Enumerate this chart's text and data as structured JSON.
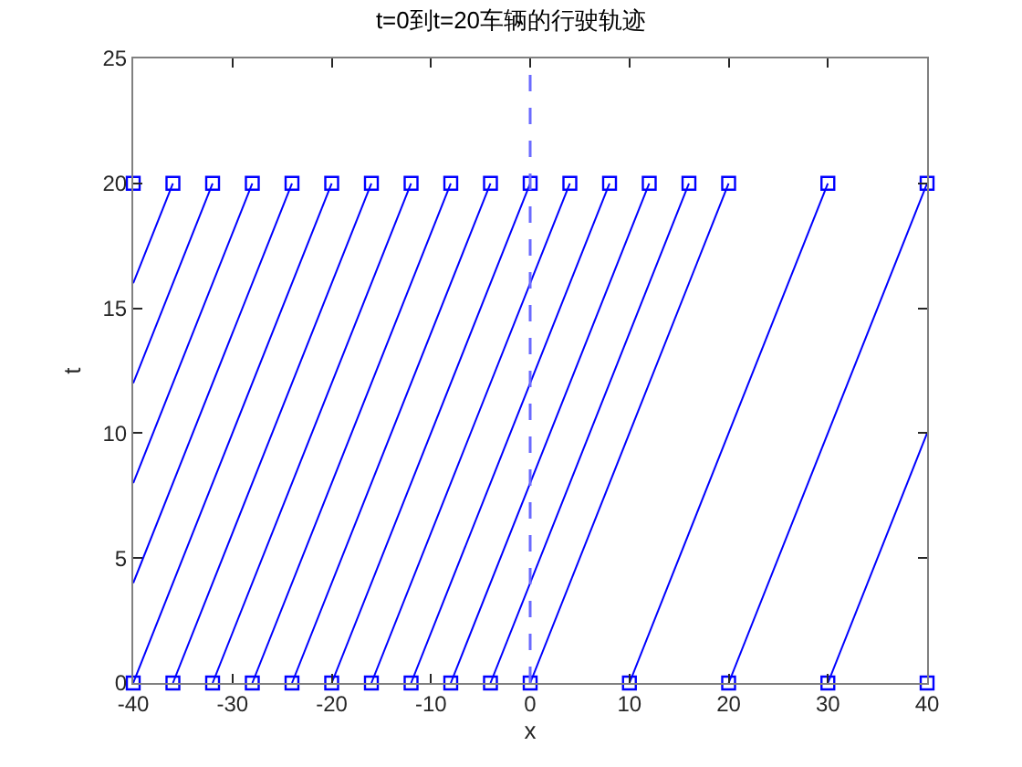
{
  "chart_data": {
    "type": "line",
    "title": "t=0到t=20车辆的行驶轨迹",
    "xlabel": "x",
    "ylabel": "t",
    "xlim": [
      -40,
      40
    ],
    "ylim": [
      0,
      25
    ],
    "xticks": [
      -40,
      -30,
      -20,
      -10,
      0,
      10,
      20,
      30,
      40
    ],
    "yticks": [
      0,
      5,
      10,
      15,
      20,
      25
    ],
    "grid": false,
    "series": [
      {
        "color": "#0000ff",
        "marker": "none",
        "line_style": "solid",
        "x": [
          -40,
          -20,
          null,
          -36,
          -16,
          null,
          -32,
          -12,
          null,
          -28,
          -8,
          null,
          -24,
          -4,
          null,
          -20,
          0,
          null,
          -16,
          4,
          null,
          -12,
          8,
          null,
          -8,
          12,
          null,
          -4,
          16,
          null,
          0,
          20,
          null,
          10,
          30,
          null,
          20,
          40,
          null,
          30,
          40,
          null,
          -40,
          -24,
          null,
          -40,
          -28,
          null,
          -40,
          -32,
          null,
          -40,
          -36
        ],
        "values": [
          0,
          20,
          null,
          0,
          20,
          null,
          0,
          20,
          null,
          0,
          20,
          null,
          0,
          20,
          null,
          0,
          20,
          null,
          0,
          20,
          null,
          0,
          20,
          null,
          0,
          20,
          null,
          0,
          20,
          null,
          0,
          20,
          null,
          0,
          20,
          null,
          0,
          20,
          null,
          0,
          10,
          null,
          4,
          20,
          null,
          8,
          20,
          null,
          12,
          20,
          null,
          16,
          20
        ]
      },
      {
        "type": "scatter",
        "color": "#0000ff",
        "marker": "square",
        "x": [
          -40,
          -36,
          -32,
          -28,
          -24,
          -20,
          -16,
          -12,
          -8,
          -4,
          0,
          10,
          20,
          30,
          40,
          -40,
          -36,
          -32,
          -28,
          -24,
          -20,
          -16,
          -12,
          -8,
          -4,
          0,
          4,
          8,
          12,
          16,
          20,
          30,
          40
        ],
        "values": [
          0,
          0,
          0,
          0,
          0,
          0,
          0,
          0,
          0,
          0,
          0,
          0,
          0,
          0,
          0,
          20,
          20,
          20,
          20,
          20,
          20,
          20,
          20,
          20,
          20,
          20,
          20,
          20,
          20,
          20,
          20,
          20,
          20
        ]
      }
    ],
    "ref_lines": [
      {
        "axis": "x",
        "value": 0,
        "color": "#6b6bff",
        "line_style": "dashed"
      }
    ]
  }
}
